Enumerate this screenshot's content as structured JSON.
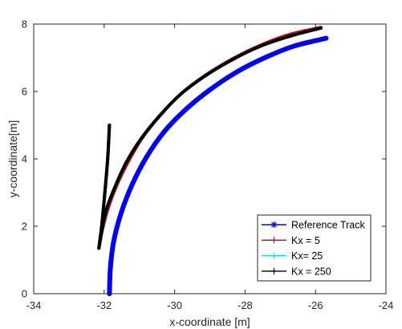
{
  "chart_data": {
    "type": "line",
    "xlabel": "x-coordinate [m]",
    "ylabel": "y-coordinate[m]",
    "xlim": [
      -34,
      -24
    ],
    "ylim": [
      0,
      8
    ],
    "xticks": [
      "-34",
      "-32",
      "-30",
      "-28",
      "-26",
      "-24"
    ],
    "yticks": [
      "0",
      "2",
      "4",
      "6",
      "8"
    ],
    "grid": false,
    "legend_position": "bottom-right",
    "series": [
      {
        "name": "Reference Track",
        "marker": "*",
        "color": "#0000ff",
        "x": [
          -31.85,
          -31.82,
          -31.72,
          -31.5,
          -31.2,
          -30.8,
          -30.3,
          -29.7,
          -29.0,
          -28.2,
          -27.4,
          -26.6,
          -25.7
        ],
        "y": [
          0.0,
          0.8,
          1.6,
          2.45,
          3.25,
          4.05,
          4.8,
          5.45,
          6.05,
          6.6,
          7.02,
          7.35,
          7.58
        ]
      },
      {
        "name": "Kx = 5",
        "marker": "+",
        "color": "#cc0000",
        "x": [
          -31.85,
          -31.9,
          -31.98,
          -32.07,
          -32.15,
          -32.05,
          -31.9,
          -31.65,
          -31.3,
          -30.9,
          -30.4,
          -29.8,
          -29.1,
          -28.3,
          -27.5,
          -26.7,
          -25.85
        ],
        "y": [
          5.0,
          4.0,
          3.0,
          2.0,
          1.35,
          1.9,
          2.5,
          3.2,
          3.95,
          4.65,
          5.3,
          5.95,
          6.5,
          7.0,
          7.4,
          7.7,
          7.9
        ]
      },
      {
        "name": "Kx= 25",
        "marker": "+",
        "color": "#00e5ee",
        "x": [
          -31.85,
          -31.9,
          -31.98,
          -32.07,
          -32.15,
          -32.07,
          -31.95,
          -31.7,
          -31.37,
          -30.95,
          -30.45,
          -29.85,
          -29.15,
          -28.35,
          -27.55,
          -26.7,
          -25.85
        ],
        "y": [
          5.0,
          4.0,
          3.0,
          2.0,
          1.35,
          1.85,
          2.45,
          3.15,
          3.9,
          4.6,
          5.25,
          5.9,
          6.45,
          6.95,
          7.35,
          7.65,
          7.88
        ]
      },
      {
        "name": "Kx = 250",
        "marker": "+",
        "color": "#000000",
        "x": [
          -31.85,
          -31.9,
          -31.98,
          -32.07,
          -32.15,
          -32.07,
          -31.95,
          -31.7,
          -31.37,
          -30.95,
          -30.45,
          -29.85,
          -29.15,
          -28.35,
          -27.55,
          -26.7,
          -25.85
        ],
        "y": [
          5.0,
          4.0,
          3.0,
          2.0,
          1.35,
          1.85,
          2.45,
          3.15,
          3.9,
          4.6,
          5.25,
          5.9,
          6.45,
          6.95,
          7.35,
          7.65,
          7.88
        ]
      }
    ]
  }
}
